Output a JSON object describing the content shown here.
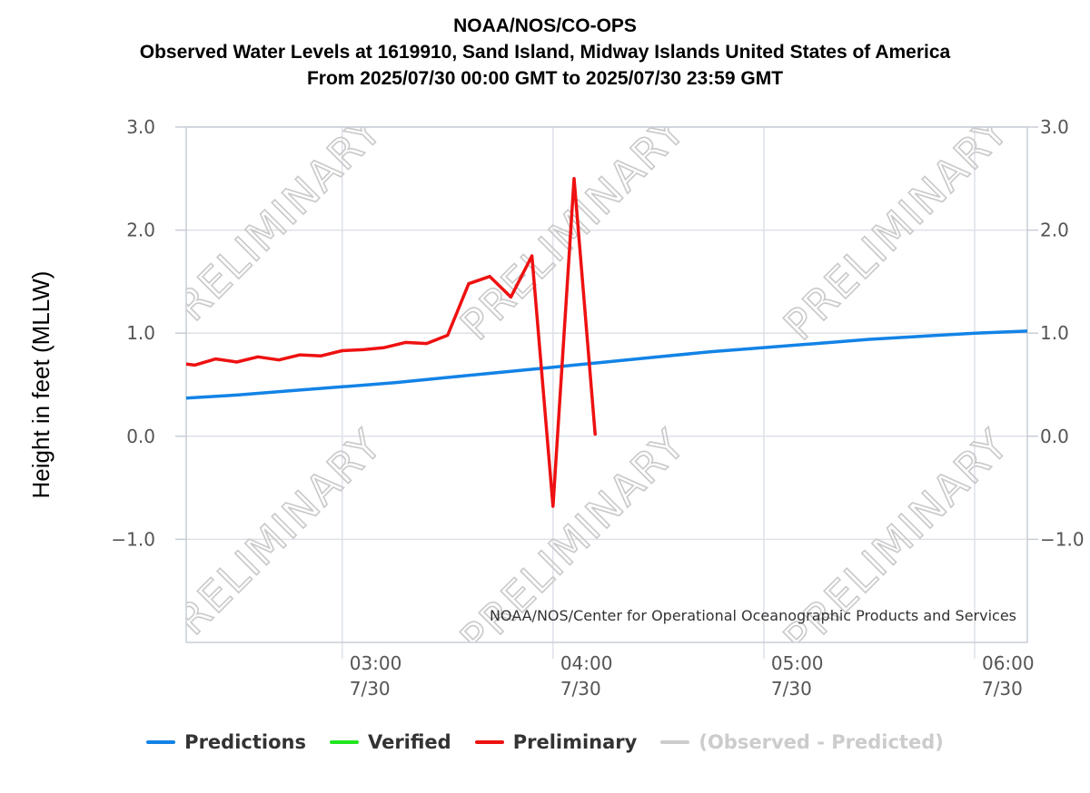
{
  "title": {
    "line1": "NOAA/NOS/CO-OPS",
    "line2": "Observed Water Levels at 1619910, Sand Island, Midway Islands United States of America",
    "line3": "From 2025/07/30 00:00 GMT to 2025/07/30 23:59 GMT"
  },
  "credit": "NOAA/NOS/Center for Operational Oceanographic Products and Services",
  "watermark": "PRELIMINARY",
  "legend": [
    {
      "label": "Predictions",
      "color": "#1283e6",
      "active": true
    },
    {
      "label": "Verified",
      "color": "#22e622",
      "active": true
    },
    {
      "label": "Preliminary",
      "color": "#ee1111",
      "active": true
    },
    {
      "label": "(Observed - Predicted)",
      "color": "#cccccc",
      "active": false
    }
  ],
  "chart_data": {
    "type": "line",
    "title": "Observed Water Levels at 1619910, Sand Island, Midway Islands United States of America",
    "xlabel": "",
    "ylabel": "Height in feet (MLLW)",
    "xlim_hours": [
      2.26,
      6.25
    ],
    "ylim": [
      -2.0,
      3.0
    ],
    "y_ticks": [
      3.0,
      2.0,
      1.0,
      0.0,
      -1.0
    ],
    "y_tick_labels": [
      "3.0",
      "2.0",
      "1.0",
      "0.0",
      "−1.0"
    ],
    "x_ticks": [
      {
        "hour": 3.0,
        "time": "03:00",
        "date": "7/30"
      },
      {
        "hour": 4.0,
        "time": "04:00",
        "date": "7/30"
      },
      {
        "hour": 5.0,
        "time": "05:00",
        "date": "7/30"
      },
      {
        "hour": 6.0,
        "time": "06:00",
        "date": "7/30"
      }
    ],
    "series": [
      {
        "name": "Predictions",
        "color": "#1283e6",
        "x": [
          2.26,
          2.5,
          2.75,
          3.0,
          3.25,
          3.5,
          3.75,
          4.0,
          4.25,
          4.5,
          4.75,
          5.0,
          5.25,
          5.5,
          5.75,
          6.0,
          6.25
        ],
        "y": [
          0.37,
          0.4,
          0.44,
          0.48,
          0.52,
          0.57,
          0.62,
          0.67,
          0.72,
          0.77,
          0.82,
          0.86,
          0.9,
          0.94,
          0.97,
          1.0,
          1.02
        ]
      },
      {
        "name": "Verified",
        "color": "#22e622",
        "x": [],
        "y": []
      },
      {
        "name": "Preliminary",
        "color": "#ee1111",
        "x": [
          2.26,
          2.3,
          2.4,
          2.5,
          2.6,
          2.7,
          2.8,
          2.9,
          3.0,
          3.1,
          3.2,
          3.3,
          3.4,
          3.5,
          3.6,
          3.7,
          3.8,
          3.9,
          4.0,
          4.1,
          4.2
        ],
        "y": [
          0.7,
          0.69,
          0.75,
          0.72,
          0.77,
          0.74,
          0.79,
          0.78,
          0.83,
          0.84,
          0.86,
          0.91,
          0.9,
          0.98,
          1.48,
          1.55,
          1.35,
          1.75,
          -0.68,
          2.5,
          0.02
        ]
      }
    ]
  }
}
